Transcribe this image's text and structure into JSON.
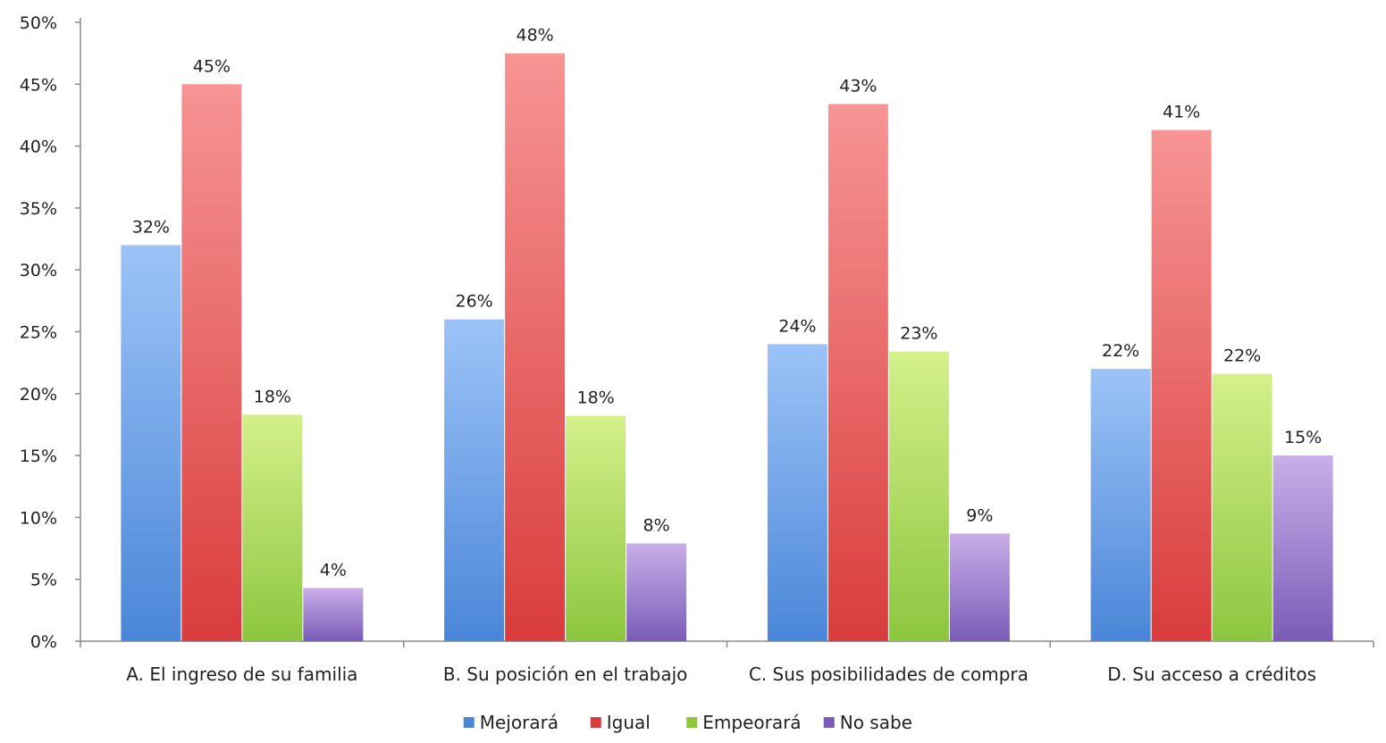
{
  "chart_data": {
    "type": "bar",
    "title": "",
    "xlabel": "",
    "ylabel": "",
    "ylim": [
      0,
      50
    ],
    "y_tick_step": 5,
    "y_tick_format": "percent",
    "grid": false,
    "legend_position": "bottom",
    "categories": [
      "A. El ingreso de su familia",
      "B. Su posición en el trabajo",
      "C. Sus posibilidades de compra",
      "D. Su acceso a créditos"
    ],
    "series": [
      {
        "name": "Mejorará",
        "color": "#4a86d8",
        "color_light": "#9cc3f7",
        "values": [
          32,
          26,
          24,
          22
        ],
        "labels": [
          "32%",
          "26%",
          "24%",
          "22%"
        ]
      },
      {
        "name": "Igual",
        "color": "#d93c3c",
        "color_light": "#f79494",
        "values": [
          45,
          47.5,
          43.4,
          41.3
        ],
        "labels": [
          "45%",
          "48%",
          "43%",
          "41%"
        ]
      },
      {
        "name": "Empeorará",
        "color": "#8cc63f",
        "color_light": "#d4f08a",
        "values": [
          18.3,
          18.2,
          23.4,
          21.6
        ],
        "labels": [
          "18%",
          "18%",
          "23%",
          "22%"
        ]
      },
      {
        "name": "No sabe",
        "color": "#7a5cb8",
        "color_light": "#c9aee8",
        "values": [
          4.3,
          7.9,
          8.7,
          15
        ],
        "labels": [
          "4%",
          "8%",
          "9%",
          "15%"
        ]
      }
    ]
  }
}
